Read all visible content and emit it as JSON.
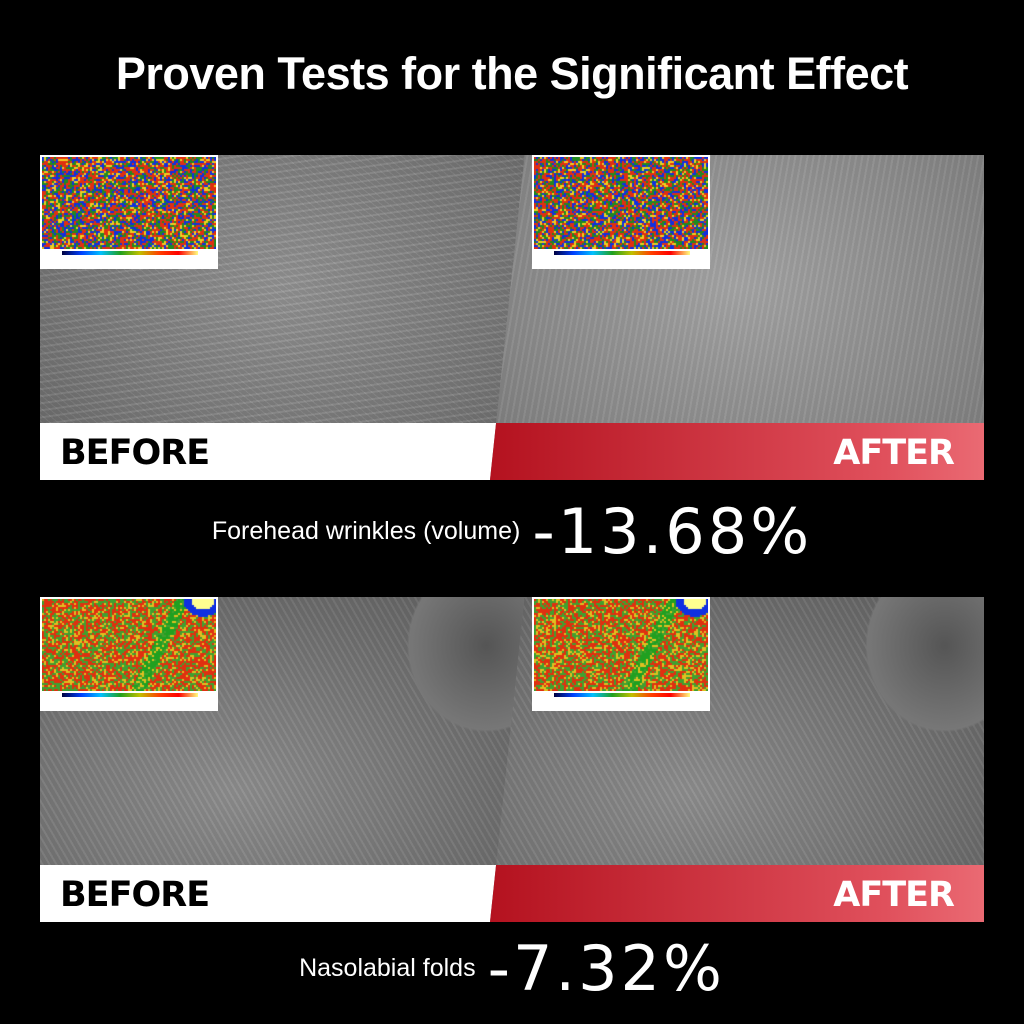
{
  "title": "Proven Tests for the Significant Effect",
  "rows": [
    {
      "before_label": "BEFORE",
      "after_label": "AFTER",
      "caption": "Forehead wrinkles (volume)",
      "value": "-13.68%"
    },
    {
      "before_label": "BEFORE",
      "after_label": "AFTER",
      "caption": "Nasolabial folds",
      "value": "-7.32%"
    }
  ],
  "colors": {
    "after_bar": "#c8202e",
    "before_bar": "#ffffff",
    "background": "#000000"
  }
}
